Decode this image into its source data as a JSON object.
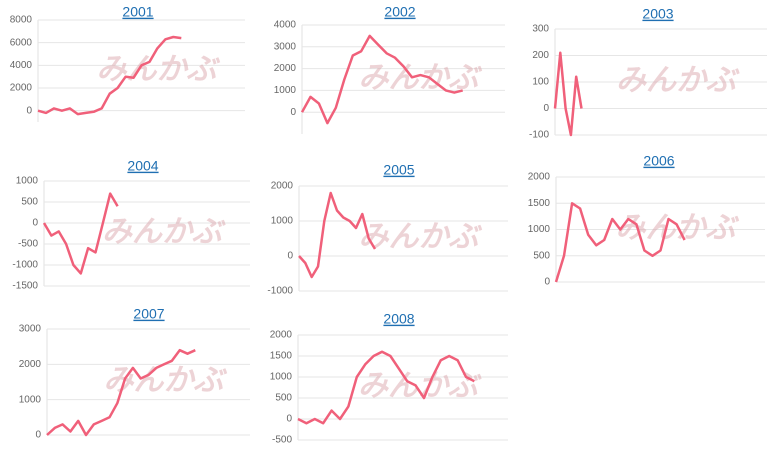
{
  "chart_data": [
    {
      "type": "line",
      "title": "2001",
      "watermark": "みんかぶ",
      "color": "#f0607a",
      "grid": true,
      "values": [
        0,
        -200,
        200,
        0,
        200,
        -300,
        -200,
        -100,
        200,
        1500,
        2000,
        3000,
        2900,
        4000,
        4300,
        5500,
        6300,
        6500,
        6400,
        null,
        null,
        null,
        null,
        null,
        null,
        null
      ],
      "ylim": [
        -1000,
        8000
      ],
      "yticks": [
        0,
        2000,
        4000,
        6000,
        8000
      ]
    },
    {
      "type": "line",
      "title": "2002",
      "watermark": "みんかぶ",
      "color": "#f0607a",
      "grid": true,
      "values": [
        0,
        700,
        400,
        -500,
        200,
        1500,
        2600,
        2800,
        3500,
        3100,
        2700,
        2500,
        2100,
        1600,
        1700,
        1600,
        1300,
        1000,
        900,
        1000,
        null,
        null,
        null,
        null
      ],
      "ylim": [
        -1000,
        4000
      ],
      "yticks": [
        0,
        1000,
        2000,
        3000,
        4000
      ]
    },
    {
      "type": "line",
      "title": "2003",
      "watermark": "みんかぶ",
      "color": "#f0607a",
      "grid": true,
      "values": [
        0,
        210,
        0,
        -100,
        120,
        0,
        null,
        null,
        null,
        null,
        null,
        null,
        null,
        null,
        null,
        null,
        null,
        null,
        null,
        null,
        null,
        null,
        null,
        null,
        null,
        null,
        null,
        null,
        null,
        null,
        null,
        null,
        null,
        null,
        null,
        null,
        null,
        null,
        null,
        null
      ],
      "ylim": [
        -100,
        300
      ],
      "yticks": [
        -100,
        0,
        100,
        200,
        300
      ]
    },
    {
      "type": "line",
      "title": "2004",
      "watermark": "みんかぶ",
      "color": "#f0607a",
      "grid": true,
      "values": [
        0,
        -300,
        -200,
        -500,
        -1000,
        -1200,
        -600,
        -700,
        0,
        700,
        400,
        null,
        null,
        null,
        null,
        null,
        null,
        null,
        null,
        null,
        null,
        null,
        null,
        null,
        null,
        null,
        null,
        null
      ],
      "ylim": [
        -1500,
        1000
      ],
      "yticks": [
        -1500,
        -1000,
        -500,
        0,
        500,
        1000
      ]
    },
    {
      "type": "line",
      "title": "2005",
      "watermark": "みんかぶ",
      "color": "#f0607a",
      "grid": true,
      "values": [
        0,
        -200,
        -600,
        -300,
        1000,
        1800,
        1300,
        1100,
        1000,
        800,
        1200,
        500,
        200,
        null,
        null,
        null,
        null,
        null,
        null,
        null,
        null,
        null,
        null,
        null,
        null,
        null,
        null,
        null,
        null,
        null,
        null,
        null,
        null
      ],
      "ylim": [
        -1000,
        2000
      ],
      "yticks": [
        -1000,
        0,
        1000,
        2000
      ]
    },
    {
      "type": "line",
      "title": "2006",
      "watermark": "みんかぶ",
      "color": "#f0607a",
      "grid": true,
      "values": [
        0,
        500,
        1500,
        1400,
        900,
        700,
        800,
        1200,
        1000,
        1200,
        1100,
        600,
        500,
        600,
        1200,
        1100,
        800,
        null,
        null,
        null,
        null,
        null,
        null,
        null,
        null,
        null
      ],
      "ylim": [
        0,
        2000
      ],
      "yticks": [
        0,
        500,
        1000,
        1500,
        2000
      ]
    },
    {
      "type": "line",
      "title": "2007",
      "watermark": "みんかぶ",
      "color": "#f0607a",
      "grid": true,
      "values": [
        0,
        200,
        300,
        100,
        400,
        0,
        300,
        400,
        500,
        900,
        1600,
        1900,
        1600,
        1700,
        1900,
        2000,
        2100,
        2400,
        2300,
        2400,
        null,
        null,
        null,
        null,
        null,
        null
      ],
      "ylim": [
        0,
        3000
      ],
      "yticks": [
        0,
        1000,
        2000,
        3000
      ]
    },
    {
      "type": "line",
      "title": "2008",
      "watermark": "みんかぶ",
      "color": "#f0607a",
      "grid": true,
      "values": [
        0,
        -100,
        0,
        -100,
        200,
        0,
        300,
        1000,
        1300,
        1500,
        1600,
        1500,
        1200,
        900,
        800,
        500,
        1000,
        1400,
        1500,
        1400,
        1000,
        900,
        null,
        null,
        null
      ],
      "ylim": [
        -500,
        2000
      ],
      "yticks": [
        -500,
        0,
        500,
        1000,
        1500,
        2000
      ]
    }
  ]
}
